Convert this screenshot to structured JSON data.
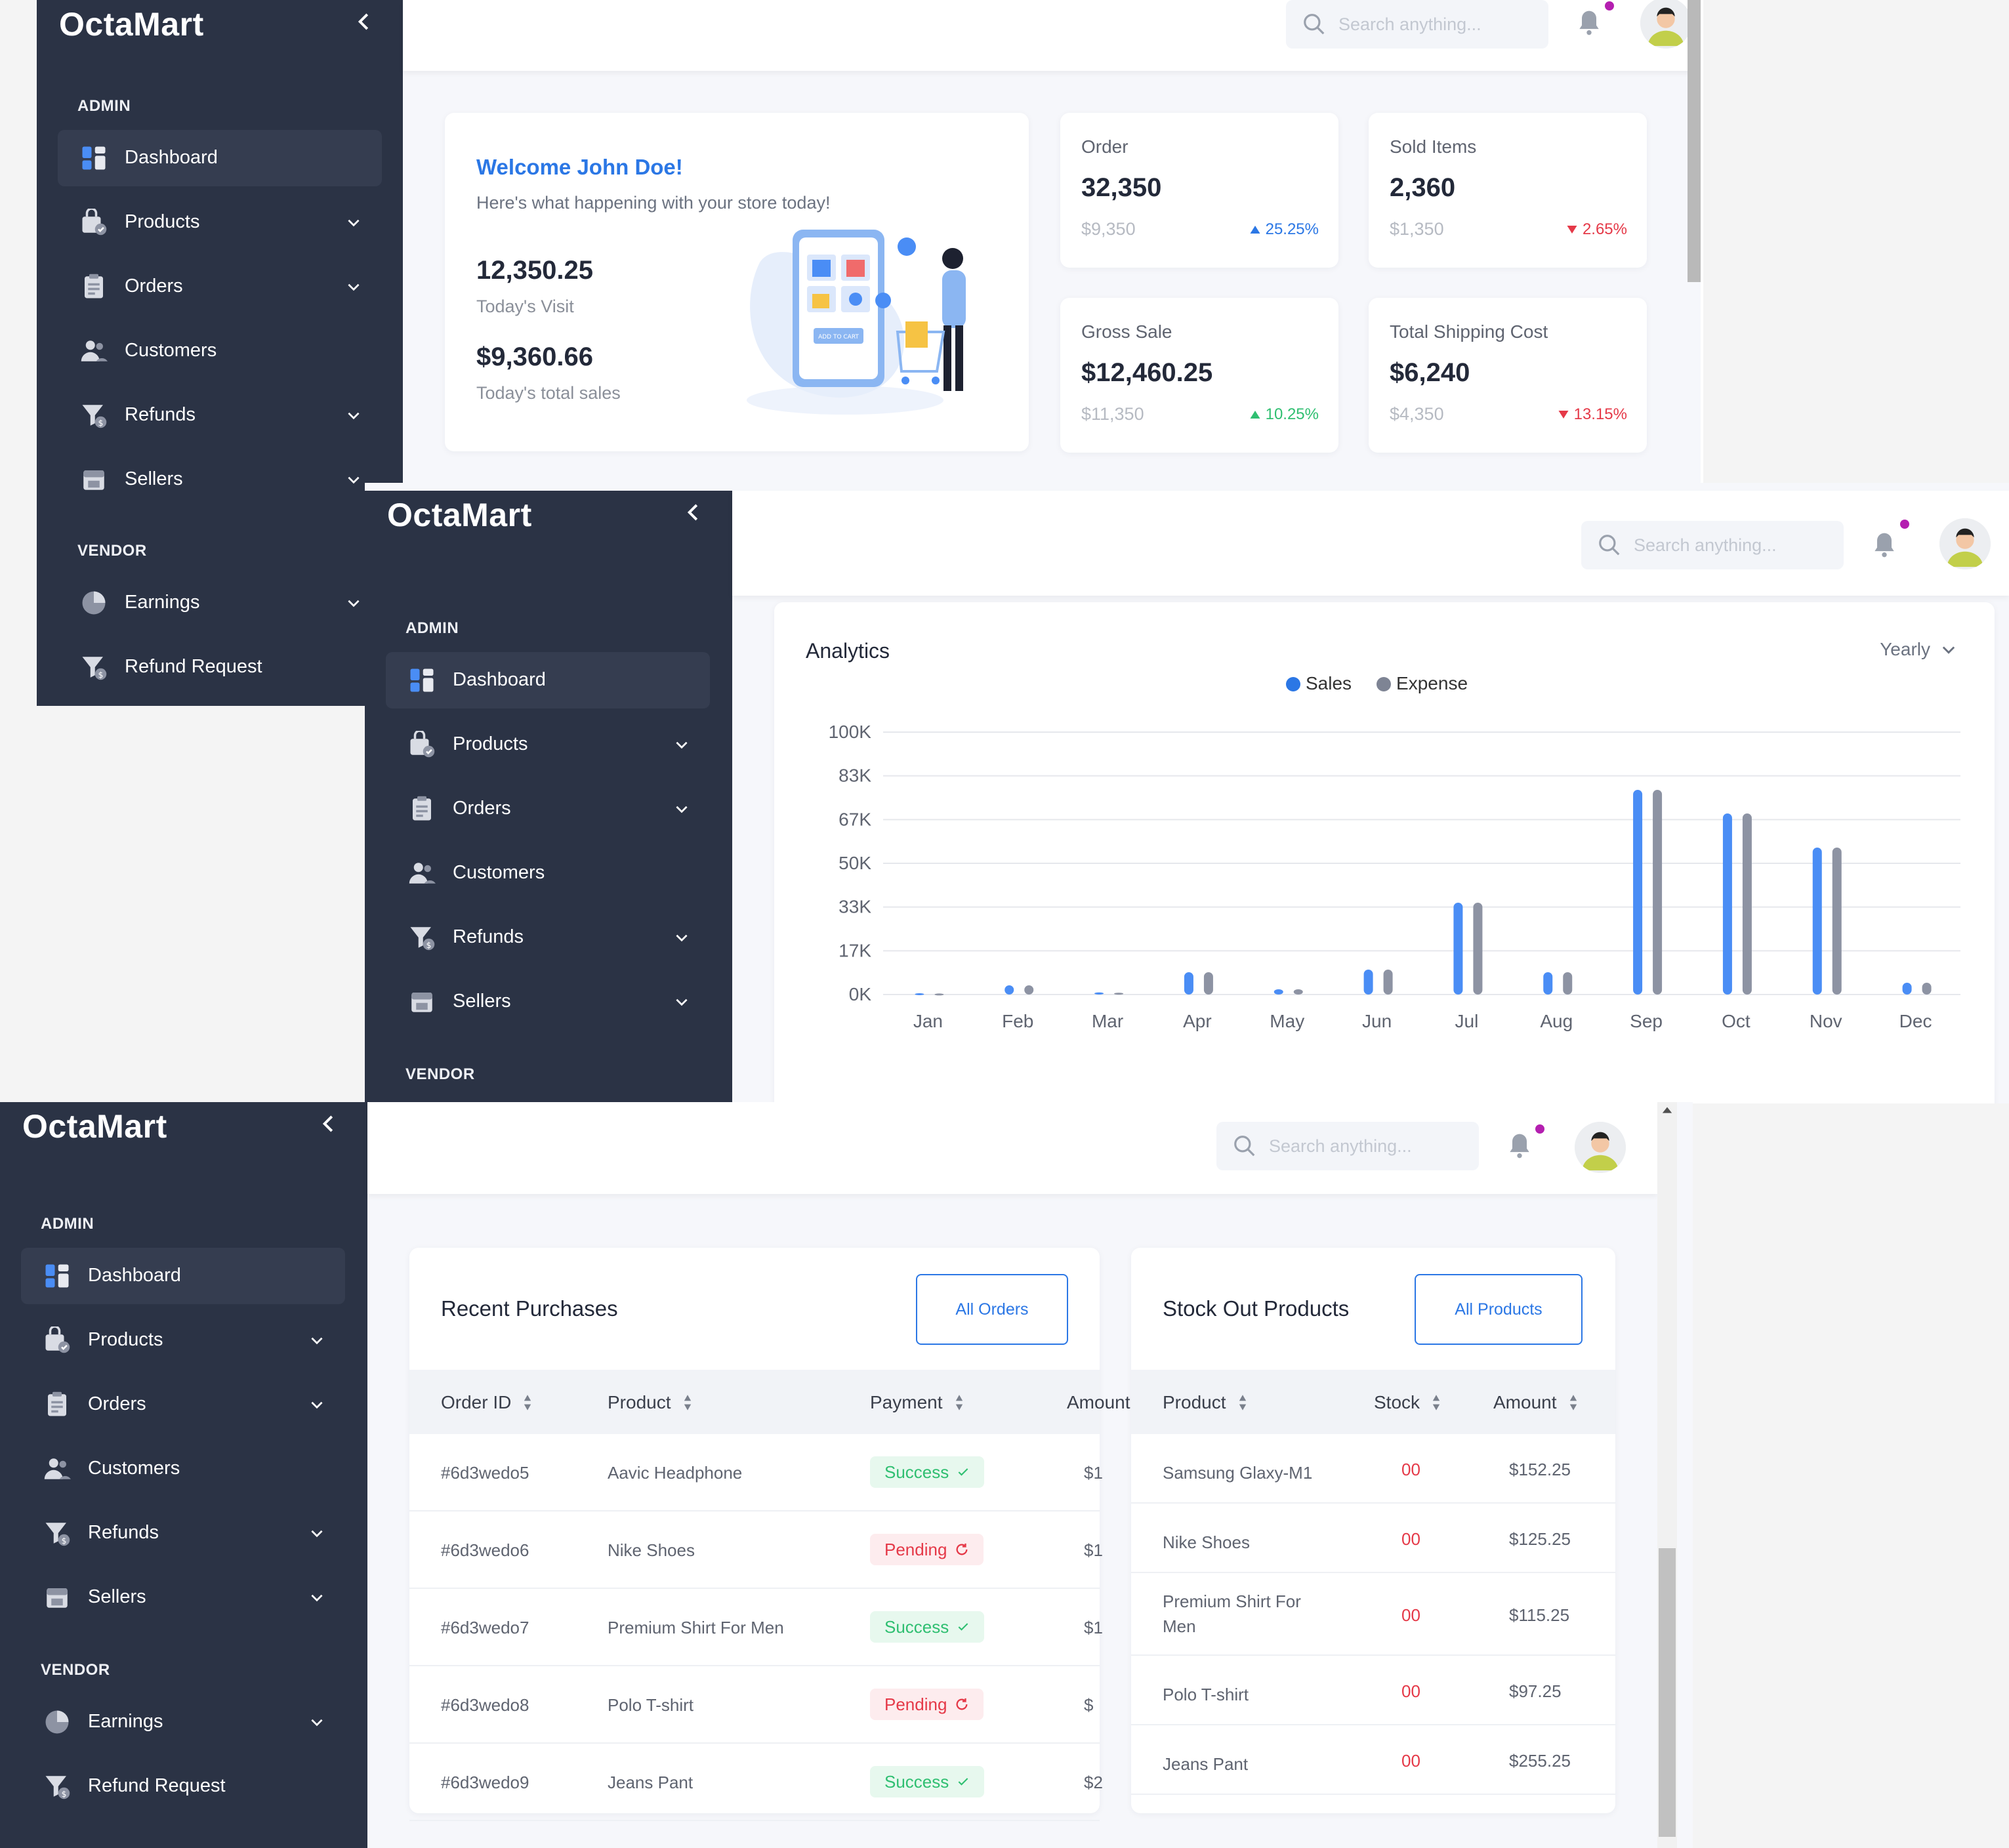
{
  "brand": "OctaMart",
  "sidebar": {
    "admin_label": "ADMIN",
    "vendor_label": "VENDOR",
    "items": [
      {
        "label": "Dashboard"
      },
      {
        "label": "Products"
      },
      {
        "label": "Orders"
      },
      {
        "label": "Customers"
      },
      {
        "label": "Refunds"
      },
      {
        "label": "Sellers"
      }
    ],
    "vendor_items": [
      {
        "label": "Earnings"
      },
      {
        "label": "Refund Request"
      }
    ]
  },
  "search": {
    "placeholder": "Search anything..."
  },
  "welcome": {
    "title": "Welcome John Doe!",
    "subtitle": "Here's what happening with your store today!",
    "visits": "12,350.25",
    "visits_label": "Today's Visit",
    "sales": "$9,360.66",
    "sales_label": "Today's total sales",
    "illustration_button": "ADD TO CART"
  },
  "stats": [
    {
      "label": "Order",
      "value": "32,350",
      "prev": "$9,350",
      "change": "25.25%",
      "trend": "up"
    },
    {
      "label": "Sold Items",
      "value": "2,360",
      "prev": "$1,350",
      "change": "2.65%",
      "trend": "down"
    },
    {
      "label": "Gross Sale",
      "value": "$12,460.25",
      "prev": "$11,350",
      "change": "10.25%",
      "trend": "up"
    },
    {
      "label": "Total Shipping Cost",
      "value": "$6,240",
      "prev": "$4,350",
      "change": "13.15%",
      "trend": "down"
    }
  ],
  "analytics": {
    "title": "Analytics",
    "period": "Yearly"
  },
  "chart_data": {
    "type": "bar",
    "title": "Analytics",
    "categories": [
      "Jan",
      "Feb",
      "Mar",
      "Apr",
      "May",
      "Jun",
      "Jul",
      "Aug",
      "Sep",
      "Oct",
      "Nov",
      "Dec"
    ],
    "series": [
      {
        "name": "Sales",
        "color": "#4a8df5",
        "values": [
          500,
          3500,
          800,
          8500,
          2000,
          9500,
          35000,
          8500,
          78000,
          69000,
          56000,
          4500
        ]
      },
      {
        "name": "Expense",
        "color": "#8d93a3",
        "values": [
          400,
          3500,
          700,
          8500,
          2000,
          9500,
          35000,
          8500,
          78000,
          69000,
          56000,
          4500
        ]
      }
    ],
    "yticks": [
      "0K",
      "17K",
      "33K",
      "50K",
      "67K",
      "83K",
      "100K"
    ],
    "ylim": [
      0,
      100000
    ],
    "grid": true,
    "legend": "top-center"
  },
  "recent_purchases": {
    "title": "Recent Purchases",
    "button": "All Orders",
    "columns": [
      "Order ID",
      "Product",
      "Payment",
      "Amount"
    ],
    "rows": [
      {
        "id": "#6d3wedo5",
        "product": "Aavic Headphone",
        "payment": "Success",
        "status": "success",
        "amount": "$1"
      },
      {
        "id": "#6d3wedo6",
        "product": "Nike Shoes",
        "payment": "Pending",
        "status": "pending",
        "amount": "$1"
      },
      {
        "id": "#6d3wedo7",
        "product": "Premium Shirt For Men",
        "payment": "Success",
        "status": "success",
        "amount": "$1"
      },
      {
        "id": "#6d3wedo8",
        "product": "Polo T-shirt",
        "payment": "Pending",
        "status": "pending",
        "amount": "$"
      },
      {
        "id": "#6d3wedo9",
        "product": "Jeans Pant",
        "payment": "Success",
        "status": "success",
        "amount": "$2"
      }
    ]
  },
  "stock_out": {
    "title": "Stock Out Products",
    "button": "All Products",
    "columns": [
      "Product",
      "Stock",
      "Amount"
    ],
    "rows": [
      {
        "product": "Samsung Glaxy-M1",
        "stock": "00",
        "amount": "$152.25"
      },
      {
        "product": "Nike Shoes",
        "stock": "00",
        "amount": "$125.25"
      },
      {
        "product": "Premium Shirt For Men",
        "stock": "00",
        "amount": "$115.25"
      },
      {
        "product": "Polo T-shirt",
        "stock": "00",
        "amount": "$97.25"
      },
      {
        "product": "Jeans Pant",
        "stock": "00",
        "amount": "$255.25"
      }
    ]
  }
}
